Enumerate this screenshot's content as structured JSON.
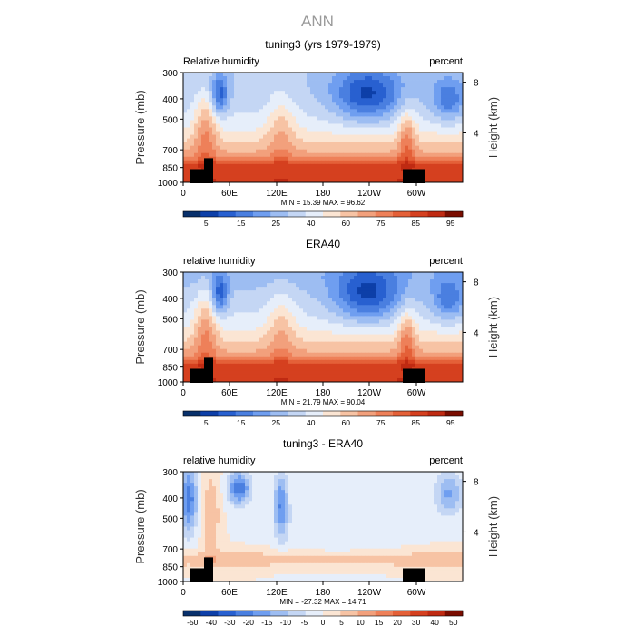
{
  "figure": {
    "title": "ANN"
  },
  "chart_data": [
    {
      "type": "heatmap",
      "title": "tuning3 (yrs 1979-1979)",
      "left_label": "Relative humidity",
      "units": "percent",
      "ylabel": "Pressure (mb)",
      "ylabel_right": "Height (km)",
      "x_ticks": [
        "0",
        "60E",
        "120E",
        "180",
        "120W",
        "60W"
      ],
      "y_ticks": [
        "300",
        "400",
        "500",
        "700",
        "850",
        "1000"
      ],
      "y_right_ticks": [
        "8",
        "4"
      ],
      "stats": "MIN =   15.39   MAX =   96.62",
      "colorbar_labels": [
        "5",
        "15",
        "25",
        "40",
        "60",
        "75",
        "85",
        "95"
      ],
      "colorbar_colors": [
        "#08306b",
        "#0d3fa8",
        "#2860d0",
        "#4a7fe0",
        "#6f9ef0",
        "#9dbdf2",
        "#c4d6f4",
        "#e6eefa",
        "#fbe5d3",
        "#f7c3a4",
        "#f2a07c",
        "#ee8059",
        "#e46038",
        "#d5401f",
        "#bf2a12",
        "#7a0d00"
      ],
      "value_range": [
        15.39,
        96.62
      ]
    },
    {
      "type": "heatmap",
      "title": "ERA40",
      "left_label": "relative humidity",
      "units": "percent",
      "ylabel": "Pressure (mb)",
      "ylabel_right": "Height (km)",
      "x_ticks": [
        "0",
        "60E",
        "120E",
        "180",
        "120W",
        "60W"
      ],
      "y_ticks": [
        "300",
        "400",
        "500",
        "700",
        "850",
        "1000"
      ],
      "y_right_ticks": [
        "8",
        "4"
      ],
      "stats": "MIN =   21.79   MAX =   90.04",
      "colorbar_labels": [
        "5",
        "15",
        "25",
        "40",
        "60",
        "75",
        "85",
        "95"
      ],
      "colorbar_colors": [
        "#08306b",
        "#0d3fa8",
        "#2860d0",
        "#4a7fe0",
        "#6f9ef0",
        "#9dbdf2",
        "#c4d6f4",
        "#e6eefa",
        "#fbe5d3",
        "#f7c3a4",
        "#f2a07c",
        "#ee8059",
        "#e46038",
        "#d5401f",
        "#bf2a12",
        "#7a0d00"
      ],
      "value_range": [
        21.79,
        90.04
      ]
    },
    {
      "type": "heatmap",
      "title": "tuning3 - ERA40",
      "left_label": "relative humidity",
      "units": "percent",
      "ylabel": "Pressure (mb)",
      "ylabel_right": "Height (km)",
      "x_ticks": [
        "0",
        "60E",
        "120E",
        "180",
        "120W",
        "60W"
      ],
      "y_ticks": [
        "300",
        "400",
        "500",
        "700",
        "850",
        "1000"
      ],
      "y_right_ticks": [
        "8",
        "4"
      ],
      "stats": "MIN =  -27.32   MAX =   14.71",
      "colorbar_labels": [
        "-50",
        "-40",
        "-30",
        "-20",
        "-15",
        "-10",
        "-5",
        "0",
        "5",
        "10",
        "15",
        "20",
        "30",
        "40",
        "50"
      ],
      "colorbar_colors": [
        "#08306b",
        "#0d3fa8",
        "#2860d0",
        "#4a7fe0",
        "#6f9ef0",
        "#9dbdf2",
        "#c4d6f4",
        "#e6eefa",
        "#fbe5d3",
        "#f7c3a4",
        "#f2a07c",
        "#ee8059",
        "#e46038",
        "#d5401f",
        "#bf2a12",
        "#7a0d00"
      ],
      "value_range": [
        -27.32,
        14.71
      ]
    }
  ]
}
